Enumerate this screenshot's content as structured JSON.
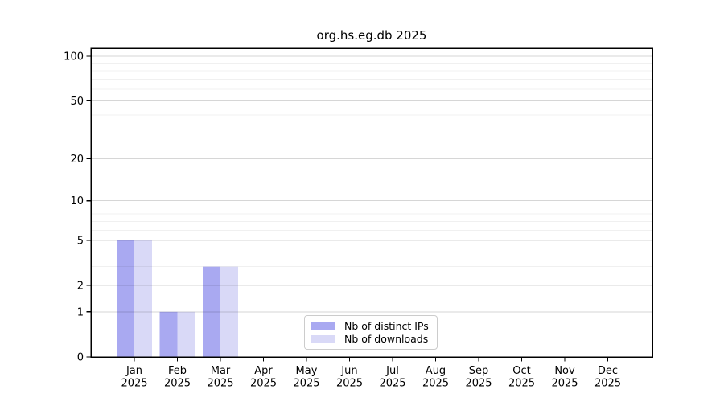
{
  "chart_data": {
    "type": "bar",
    "title": "org.hs.eg.db 2025",
    "categories": [
      "Jan 2025",
      "Feb 2025",
      "Mar 2025",
      "Apr 2025",
      "May 2025",
      "Jun 2025",
      "Jul 2025",
      "Aug 2025",
      "Sep 2025",
      "Oct 2025",
      "Nov 2025",
      "Dec 2025"
    ],
    "x_tick_months": [
      "Jan",
      "Feb",
      "Mar",
      "Apr",
      "May",
      "Jun",
      "Jul",
      "Aug",
      "Sep",
      "Oct",
      "Nov",
      "Dec"
    ],
    "x_tick_year": "2025",
    "series": [
      {
        "name": "Nb of distinct IPs",
        "color": "#a9a9f1",
        "values": [
          5,
          1,
          3,
          0,
          0,
          0,
          0,
          0,
          0,
          0,
          0,
          0
        ]
      },
      {
        "name": "Nb of downloads",
        "color": "#d9d9f7",
        "values": [
          5,
          1,
          3,
          0,
          0,
          0,
          0,
          0,
          0,
          0,
          0,
          0
        ]
      }
    ],
    "y_axis": {
      "scale": "log1p",
      "ticks": [
        0,
        1,
        2,
        5,
        10,
        20,
        50,
        100
      ],
      "minor_gridlines": [
        3,
        4,
        6,
        7,
        8,
        9,
        30,
        40,
        60,
        70,
        80,
        90
      ],
      "ylim": [
        0,
        100
      ]
    },
    "legend": {
      "position": "lower-center",
      "entries": [
        "Nb of distinct IPs",
        "Nb of downloads"
      ]
    },
    "grid": true
  },
  "colors": {
    "background": "#ffffff",
    "major_grid": "rgba(0,0,0,0.16)",
    "minor_grid": "rgba(0,0,0,0.06)",
    "axis": "#000000",
    "text": "#000000",
    "legend_border": "#cccccc",
    "legend_bg": "rgba(255,255,255,0.92)"
  }
}
